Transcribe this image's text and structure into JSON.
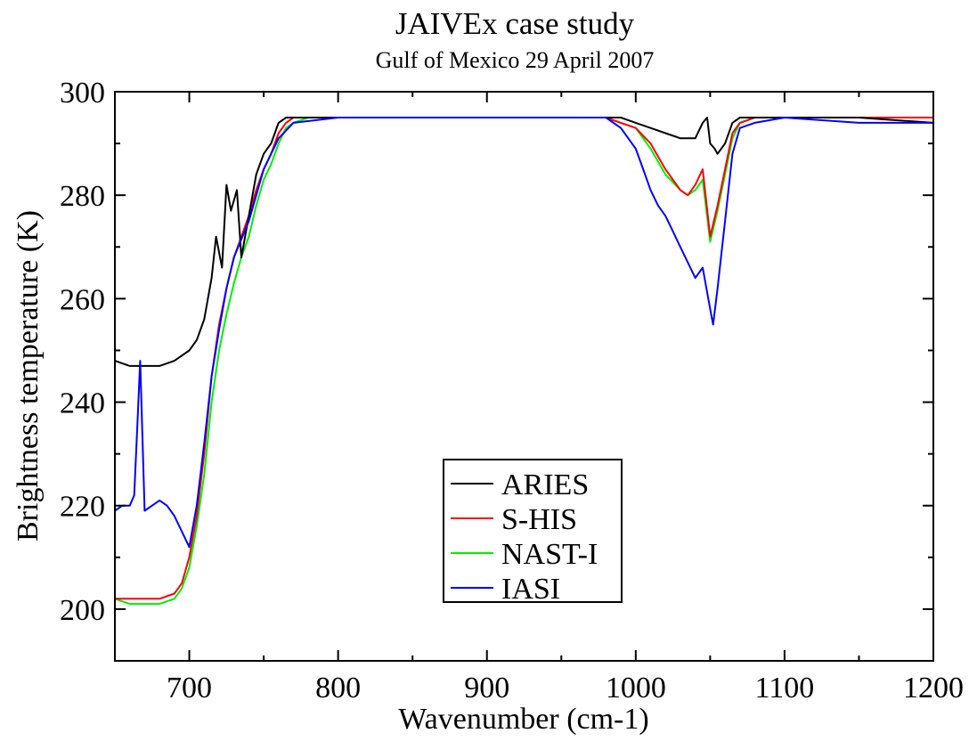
{
  "chart_data": {
    "type": "line",
    "title": "JAIVEx case study",
    "subtitle": "Gulf of Mexico 29 April 2007",
    "xlabel": "Wavenumber (cm-1)",
    "ylabel": "Brightness temperature (K)",
    "xlim": [
      650,
      1200
    ],
    "ylim": [
      190,
      300
    ],
    "xticks": [
      700,
      800,
      900,
      1000,
      1100,
      1200
    ],
    "yticks": [
      200,
      220,
      240,
      260,
      280,
      300
    ],
    "grid": false,
    "legend_position": "lower-center",
    "series": [
      {
        "name": "ARIES",
        "color": "#000000",
        "x": [
          650,
          660,
          670,
          680,
          690,
          700,
          705,
          710,
          715,
          718,
          722,
          725,
          728,
          732,
          735,
          740,
          745,
          750,
          755,
          760,
          765,
          770,
          780,
          790,
          800,
          850,
          900,
          950,
          980,
          990,
          1000,
          1010,
          1020,
          1030,
          1040,
          1045,
          1048,
          1050,
          1053,
          1055,
          1060,
          1065,
          1070,
          1080,
          1100,
          1150,
          1200
        ],
        "y": [
          248,
          247,
          247,
          247,
          248,
          250,
          252,
          256,
          264,
          272,
          266,
          282,
          277,
          281,
          268,
          276,
          284,
          288,
          290,
          294,
          295,
          295,
          295,
          295,
          295,
          295,
          295,
          295,
          295,
          295,
          294,
          293,
          292,
          291,
          291,
          294,
          295,
          290,
          289,
          288,
          290,
          294,
          295,
          295,
          295,
          295,
          294
        ]
      },
      {
        "name": "S-HIS",
        "color": "#ff0000",
        "x": [
          650,
          660,
          670,
          680,
          690,
          695,
          700,
          705,
          710,
          715,
          720,
          725,
          730,
          735,
          740,
          745,
          750,
          755,
          760,
          765,
          770,
          780,
          790,
          800,
          850,
          900,
          950,
          980,
          990,
          1000,
          1010,
          1020,
          1030,
          1035,
          1040,
          1045,
          1050,
          1055,
          1060,
          1065,
          1070,
          1080,
          1100,
          1150,
          1200
        ],
        "y": [
          202,
          202,
          202,
          202,
          203,
          205,
          210,
          218,
          230,
          245,
          255,
          262,
          268,
          272,
          276,
          281,
          285,
          288,
          292,
          294,
          295,
          295,
          295,
          295,
          295,
          295,
          295,
          295,
          294,
          293,
          290,
          285,
          281,
          280,
          282,
          285,
          272,
          278,
          285,
          292,
          294,
          295,
          295,
          295,
          295
        ]
      },
      {
        "name": "NAST-I",
        "color": "#00ee00",
        "x": [
          650,
          660,
          670,
          680,
          690,
          695,
          700,
          705,
          710,
          715,
          720,
          725,
          730,
          735,
          740,
          745,
          750,
          755,
          760,
          765,
          770,
          780,
          790,
          800,
          850,
          900,
          950,
          980,
          990,
          1000,
          1010,
          1020,
          1030,
          1035,
          1040,
          1045,
          1050,
          1055,
          1060,
          1065,
          1070,
          1080,
          1100,
          1150,
          1200
        ],
        "y": [
          202,
          201,
          201,
          201,
          202,
          204,
          208,
          216,
          226,
          240,
          250,
          257,
          263,
          268,
          272,
          278,
          283,
          286,
          290,
          293,
          294,
          295,
          295,
          295,
          295,
          295,
          295,
          295,
          294,
          293,
          289,
          284,
          281,
          280,
          281,
          283,
          271,
          277,
          284,
          291,
          294,
          295,
          295,
          295,
          295
        ]
      },
      {
        "name": "IASI",
        "color": "#0000ff",
        "x": [
          650,
          655,
          660,
          663,
          665,
          667,
          670,
          675,
          680,
          685,
          690,
          695,
          700,
          705,
          710,
          715,
          720,
          725,
          730,
          740,
          750,
          760,
          770,
          800,
          850,
          900,
          950,
          980,
          990,
          1000,
          1005,
          1010,
          1015,
          1020,
          1025,
          1030,
          1035,
          1040,
          1045,
          1050,
          1052,
          1055,
          1060,
          1065,
          1070,
          1080,
          1100,
          1150,
          1200
        ],
        "y": [
          219,
          220,
          220,
          222,
          235,
          248,
          219,
          220,
          221,
          220,
          218,
          215,
          212,
          220,
          232,
          245,
          254,
          262,
          268,
          275,
          285,
          291,
          294,
          295,
          295,
          295,
          295,
          295,
          293,
          289,
          285,
          281,
          278,
          276,
          273,
          270,
          267,
          264,
          266,
          258,
          255,
          262,
          275,
          288,
          293,
          294,
          295,
          294,
          294
        ]
      }
    ]
  }
}
